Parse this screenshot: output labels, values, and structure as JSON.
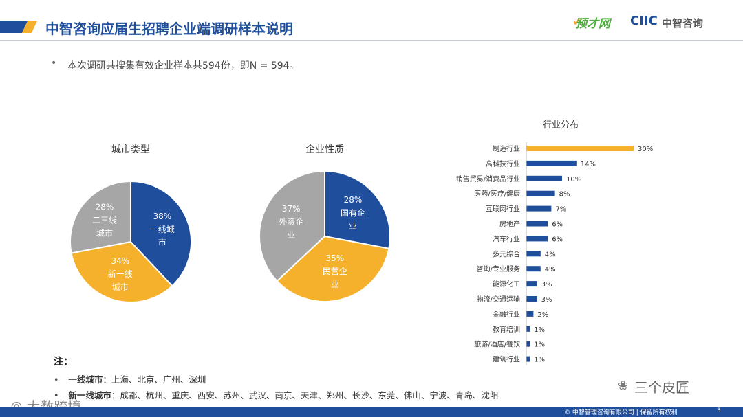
{
  "header": {
    "title": "中智咨询应届生招聘企业端调研样本说明",
    "logo_left": "预才网",
    "logo_left_mark": "✔",
    "logo_right": "CIIC",
    "logo_right_cn": "中智咨询"
  },
  "bullet": {
    "symbol": "•",
    "text": "本次调研共搜集有效企业样本共594份，即N = 594。"
  },
  "colors": {
    "blue": "#1f4e9c",
    "yellow": "#f5b12b",
    "gray": "#a6a6a6"
  },
  "chart_data": [
    {
      "type": "pie",
      "title": "城市类型",
      "slices": [
        {
          "label": "一线城市",
          "lines": [
            "一线城",
            "市"
          ],
          "value": 38,
          "color": "#1f4e9c"
        },
        {
          "label": "新一线城市",
          "lines": [
            "新一线",
            "城市"
          ],
          "value": 34,
          "color": "#f5b12b"
        },
        {
          "label": "二三线城市",
          "lines": [
            "二三线",
            "城市"
          ],
          "value": 28,
          "color": "#a6a6a6"
        }
      ]
    },
    {
      "type": "pie",
      "title": "企业性质",
      "slices": [
        {
          "label": "国有企业",
          "lines": [
            "国有企",
            "业"
          ],
          "value": 28,
          "color": "#1f4e9c"
        },
        {
          "label": "民营企业",
          "lines": [
            "民营企",
            "业"
          ],
          "value": 35,
          "color": "#f5b12b"
        },
        {
          "label": "外资企业",
          "lines": [
            "外资企",
            "业"
          ],
          "value": 37,
          "color": "#a6a6a6"
        }
      ]
    },
    {
      "type": "bar",
      "orientation": "horizontal",
      "title": "行业分布",
      "categories": [
        "制造行业",
        "高科技行业",
        "销售贸易/消费品行业",
        "医药/医疗/健康",
        "互联网行业",
        "房地产",
        "汽车行业",
        "多元综合",
        "咨询/专业服务",
        "能源化工",
        "物流/交通运输",
        "金融行业",
        "教育培训",
        "旅游/酒店/餐饮",
        "建筑行业"
      ],
      "values": [
        30,
        14,
        10,
        8,
        7,
        6,
        6,
        4,
        4,
        3,
        3,
        2,
        1,
        1,
        1
      ],
      "highlight_color": "#f5b12b",
      "bar_color": "#1f4e9c",
      "value_suffix": "%"
    }
  ],
  "notes": {
    "heading": "注：",
    "rows": [
      {
        "key": "一线城市",
        "value": "：上海、北京、广州、深圳"
      },
      {
        "key": "新一线城市",
        "value": "：成都、杭州、重庆、西安、苏州、武汉、南京、天津、郑州、长沙、东莞、佛山、宁波、青岛、沈阳"
      }
    ]
  },
  "watermarks": {
    "wechat": "三个皮匠",
    "wechat_icon": "❀",
    "corner": "⦾ 大数跨境"
  },
  "footer": {
    "copyright": "© 中智管理咨询有限公司 | 保留所有权利",
    "page": "3"
  }
}
